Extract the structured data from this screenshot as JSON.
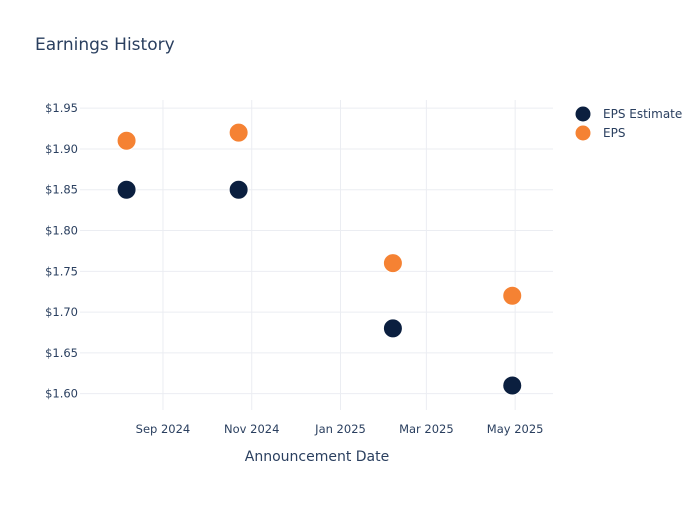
{
  "chart_data": {
    "type": "scatter",
    "title": "Earnings History",
    "xlabel": "Announcement Date",
    "ylabel": "",
    "x_ticks": [
      "Sep 2024",
      "Nov 2024",
      "Jan 2025",
      "Mar 2025",
      "May 2025"
    ],
    "x_tick_dates": [
      "2024-09-01",
      "2024-11-01",
      "2025-01-01",
      "2025-03-01",
      "2025-05-01"
    ],
    "xlim": [
      "2024-07-06",
      "2025-05-27"
    ],
    "y_ticks": [
      "$1.60",
      "$1.65",
      "$1.70",
      "$1.75",
      "$1.80",
      "$1.85",
      "$1.90",
      "$1.95"
    ],
    "y_tick_values": [
      1.6,
      1.65,
      1.7,
      1.75,
      1.8,
      1.85,
      1.9,
      1.95
    ],
    "ylim": [
      1.58,
      1.96
    ],
    "grid": true,
    "legend_position": "top-right",
    "series": [
      {
        "name": "EPS Estimate",
        "color": "#0b1f3f",
        "points": [
          {
            "x": "2024-08-07",
            "y": 1.85
          },
          {
            "x": "2024-10-23",
            "y": 1.85
          },
          {
            "x": "2025-02-06",
            "y": 1.68
          },
          {
            "x": "2025-04-29",
            "y": 1.61
          }
        ]
      },
      {
        "name": "EPS",
        "color": "#f58233",
        "points": [
          {
            "x": "2024-08-07",
            "y": 1.91
          },
          {
            "x": "2024-10-23",
            "y": 1.92
          },
          {
            "x": "2025-02-06",
            "y": 1.76
          },
          {
            "x": "2025-04-29",
            "y": 1.72
          }
        ]
      }
    ]
  }
}
